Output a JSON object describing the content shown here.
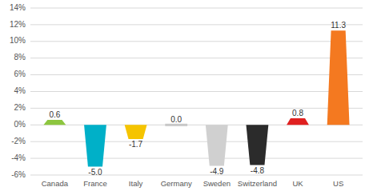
{
  "chart_data": {
    "type": "bar",
    "categories": [
      "Canada",
      "France",
      "Italy",
      "Germany",
      "Sweden",
      "Switzerland",
      "UK",
      "US"
    ],
    "values": [
      0.6,
      -5.0,
      -1.7,
      0.0,
      -4.9,
      -4.8,
      0.8,
      11.3
    ],
    "value_labels": [
      "0.6",
      "-5.0",
      "-1.7",
      "0.0",
      "-4.9",
      "-4.8",
      "0.8",
      "11.3"
    ],
    "colors": [
      "#8dc63f",
      "#00b0c8",
      "#f5c400",
      "#c8c8c8",
      "#d0d0d0",
      "#2b2b2b",
      "#e02020",
      "#f47920"
    ],
    "ylim": [
      -6,
      14
    ],
    "yticks": [
      {
        "value": -6,
        "label": "-6%"
      },
      {
        "value": -4,
        "label": "-4%"
      },
      {
        "value": -2,
        "label": "-2%"
      },
      {
        "value": 0,
        "label": "0%"
      },
      {
        "value": 2,
        "label": "2%"
      },
      {
        "value": 4,
        "label": "4%"
      },
      {
        "value": 6,
        "label": "6%"
      },
      {
        "value": 8,
        "label": "8%"
      },
      {
        "value": 10,
        "label": "10%"
      },
      {
        "value": 12,
        "label": "12%"
      },
      {
        "value": 14,
        "label": "14%"
      }
    ],
    "grid": true,
    "data_labels": true
  }
}
